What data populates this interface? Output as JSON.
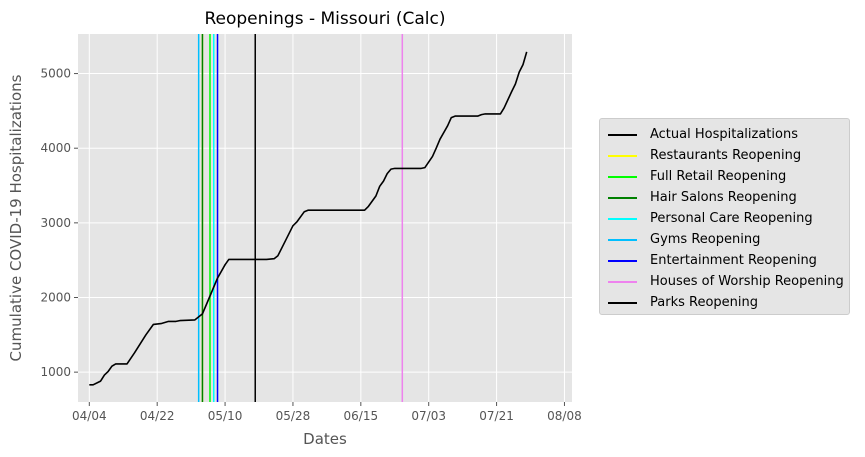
{
  "chart_data": {
    "type": "line",
    "title": "Reopenings - Missouri (Calc)",
    "xlabel": "Dates",
    "ylabel": "Cumulative COVID-19 Hospitalizations",
    "x_axis": {
      "min": "2020-04-01",
      "max": "2020-08-10",
      "ticks": [
        {
          "date": "2020-04-04",
          "label": "04/04"
        },
        {
          "date": "2020-04-22",
          "label": "04/22"
        },
        {
          "date": "2020-05-10",
          "label": "05/10"
        },
        {
          "date": "2020-05-28",
          "label": "05/28"
        },
        {
          "date": "2020-06-15",
          "label": "06/15"
        },
        {
          "date": "2020-07-03",
          "label": "07/03"
        },
        {
          "date": "2020-07-21",
          "label": "07/21"
        },
        {
          "date": "2020-08-08",
          "label": "08/08"
        }
      ]
    },
    "y_axis": {
      "min": 600,
      "max": 5530,
      "ticks": [
        1000,
        2000,
        3000,
        4000,
        5000
      ]
    },
    "grid": true,
    "legend_position": "right",
    "series": [
      {
        "name": "Actual Hospitalizations",
        "color": "#000000",
        "points": [
          {
            "x": "2020-04-04",
            "y": 830
          },
          {
            "x": "2020-04-05",
            "y": 830
          },
          {
            "x": "2020-04-07",
            "y": 880
          },
          {
            "x": "2020-04-08",
            "y": 960
          },
          {
            "x": "2020-04-09",
            "y": 1010
          },
          {
            "x": "2020-04-10",
            "y": 1080
          },
          {
            "x": "2020-04-11",
            "y": 1110
          },
          {
            "x": "2020-04-14",
            "y": 1110
          },
          {
            "x": "2020-04-16",
            "y": 1260
          },
          {
            "x": "2020-04-19",
            "y": 1500
          },
          {
            "x": "2020-04-21",
            "y": 1640
          },
          {
            "x": "2020-04-23",
            "y": 1650
          },
          {
            "x": "2020-04-25",
            "y": 1680
          },
          {
            "x": "2020-04-27",
            "y": 1680
          },
          {
            "x": "2020-04-28",
            "y": 1690
          },
          {
            "x": "2020-05-02",
            "y": 1700
          },
          {
            "x": "2020-05-04",
            "y": 1780
          },
          {
            "x": "2020-05-06",
            "y": 2020
          },
          {
            "x": "2020-05-08",
            "y": 2260
          },
          {
            "x": "2020-05-10",
            "y": 2440
          },
          {
            "x": "2020-05-11",
            "y": 2510
          },
          {
            "x": "2020-05-15",
            "y": 2510
          },
          {
            "x": "2020-05-21",
            "y": 2510
          },
          {
            "x": "2020-05-23",
            "y": 2520
          },
          {
            "x": "2020-05-24",
            "y": 2560
          },
          {
            "x": "2020-05-26",
            "y": 2760
          },
          {
            "x": "2020-05-28",
            "y": 2960
          },
          {
            "x": "2020-05-29",
            "y": 3010
          },
          {
            "x": "2020-05-31",
            "y": 3150
          },
          {
            "x": "2020-06-01",
            "y": 3170
          },
          {
            "x": "2020-06-09",
            "y": 3170
          },
          {
            "x": "2020-06-16",
            "y": 3170
          },
          {
            "x": "2020-06-17",
            "y": 3220
          },
          {
            "x": "2020-06-19",
            "y": 3360
          },
          {
            "x": "2020-06-20",
            "y": 3490
          },
          {
            "x": "2020-06-21",
            "y": 3560
          },
          {
            "x": "2020-06-22",
            "y": 3660
          },
          {
            "x": "2020-06-23",
            "y": 3720
          },
          {
            "x": "2020-06-24",
            "y": 3730
          },
          {
            "x": "2020-07-01",
            "y": 3730
          },
          {
            "x": "2020-07-02",
            "y": 3740
          },
          {
            "x": "2020-07-04",
            "y": 3890
          },
          {
            "x": "2020-07-05",
            "y": 4000
          },
          {
            "x": "2020-07-06",
            "y": 4120
          },
          {
            "x": "2020-07-08",
            "y": 4300
          },
          {
            "x": "2020-07-09",
            "y": 4410
          },
          {
            "x": "2020-07-10",
            "y": 4430
          },
          {
            "x": "2020-07-16",
            "y": 4430
          },
          {
            "x": "2020-07-17",
            "y": 4450
          },
          {
            "x": "2020-07-18",
            "y": 4460
          },
          {
            "x": "2020-07-22",
            "y": 4460
          },
          {
            "x": "2020-07-23",
            "y": 4540
          },
          {
            "x": "2020-07-25",
            "y": 4760
          },
          {
            "x": "2020-07-26",
            "y": 4860
          },
          {
            "x": "2020-07-27",
            "y": 5020
          },
          {
            "x": "2020-07-28",
            "y": 5120
          },
          {
            "x": "2020-07-29",
            "y": 5290
          }
        ]
      }
    ],
    "reopenings": [
      {
        "name": "Restaurants Reopening",
        "color": "#ffff00",
        "date": "2020-05-04"
      },
      {
        "name": "Full Retail Reopening",
        "color": "#00ff00",
        "date": "2020-05-06"
      },
      {
        "name": "Hair Salons Reopening",
        "color": "#008000",
        "date": "2020-05-04"
      },
      {
        "name": "Personal Care Reopening",
        "color": "#00ffff",
        "date": "2020-05-07"
      },
      {
        "name": "Gyms Reopening",
        "color": "#00bfff",
        "date": "2020-05-03"
      },
      {
        "name": "Entertainment Reopening",
        "color": "#0000ff",
        "date": "2020-05-08"
      },
      {
        "name": "Houses of Worship Reopening",
        "color": "#ee82ee",
        "date": "2020-06-26"
      },
      {
        "name": "Parks Reopening",
        "color": "#000000",
        "date": "2020-05-18"
      }
    ],
    "legend": [
      {
        "name": "Actual Hospitalizations",
        "color": "#000000"
      },
      {
        "name": "Restaurants Reopening",
        "color": "#ffff00"
      },
      {
        "name": "Full Retail Reopening",
        "color": "#00ff00"
      },
      {
        "name": "Hair Salons Reopening",
        "color": "#008000"
      },
      {
        "name": "Personal Care Reopening",
        "color": "#00ffff"
      },
      {
        "name": "Gyms Reopening",
        "color": "#00bfff"
      },
      {
        "name": "Entertainment Reopening",
        "color": "#0000ff"
      },
      {
        "name": "Houses of Worship Reopening",
        "color": "#ee82ee"
      },
      {
        "name": "Parks Reopening",
        "color": "#000000"
      }
    ]
  }
}
